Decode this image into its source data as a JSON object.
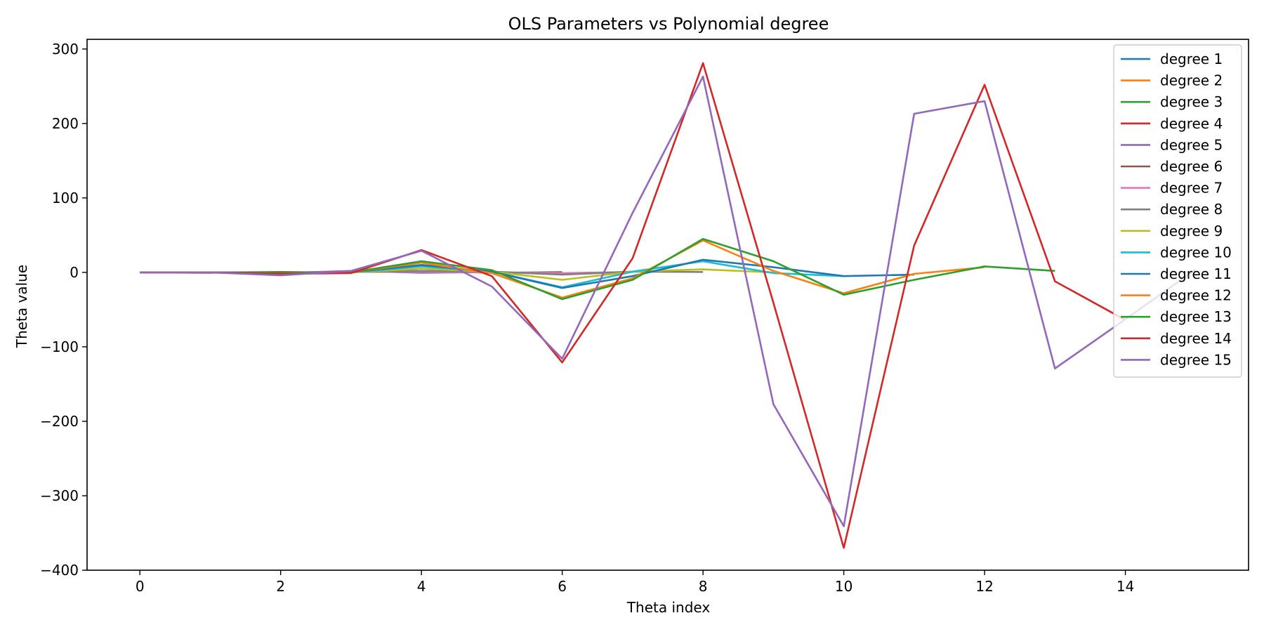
{
  "chart_data": {
    "type": "line",
    "title": "OLS Parameters vs Polynomial degree",
    "xlabel": "Theta index",
    "ylabel": "Theta value",
    "xlim": [
      -0.75,
      15.75
    ],
    "ylim": [
      -400,
      313
    ],
    "xticks": [
      0,
      2,
      4,
      6,
      8,
      10,
      12,
      14
    ],
    "yticks": [
      -400,
      -300,
      -200,
      -100,
      0,
      100,
      200,
      300
    ],
    "ytick_labels": [
      "−400",
      "−300",
      "−200",
      "−100",
      "0",
      "100",
      "200",
      "300"
    ],
    "legend_position": "upper-right",
    "series": [
      {
        "name": "degree 1",
        "color": "#1f77b4",
        "x": [
          0,
          1
        ],
        "y": [
          0.0,
          -0.5
        ]
      },
      {
        "name": "degree 2",
        "color": "#ff7f0e",
        "x": [
          0,
          1,
          2
        ],
        "y": [
          0.0,
          -0.5,
          0.2
        ]
      },
      {
        "name": "degree 3",
        "color": "#2ca02c",
        "x": [
          0,
          1,
          2,
          3
        ],
        "y": [
          0.0,
          -0.3,
          0.5,
          -0.3
        ]
      },
      {
        "name": "degree 4",
        "color": "#d62728",
        "x": [
          0,
          1,
          2,
          3,
          4
        ],
        "y": [
          0.0,
          -0.3,
          -0.5,
          1.0,
          0.5
        ]
      },
      {
        "name": "degree 5",
        "color": "#9467bd",
        "x": [
          0,
          1,
          2,
          3,
          4,
          5
        ],
        "y": [
          0.0,
          0.0,
          -1.0,
          2.0,
          -0.5,
          0.3
        ]
      },
      {
        "name": "degree 6",
        "color": "#8c564b",
        "x": [
          0,
          1,
          2,
          3,
          4,
          5,
          6
        ],
        "y": [
          0.0,
          0.0,
          -1.0,
          1.0,
          2.0,
          -0.5,
          0.3
        ]
      },
      {
        "name": "degree 7",
        "color": "#e377c2",
        "x": [
          0,
          1,
          2,
          3,
          4,
          5,
          6,
          7
        ],
        "y": [
          0.0,
          0.0,
          -1.0,
          0.5,
          1.0,
          0.0,
          -1.0,
          0.5
        ]
      },
      {
        "name": "degree 8",
        "color": "#7f7f7f",
        "x": [
          0,
          1,
          2,
          3,
          4,
          5,
          6,
          7,
          8
        ],
        "y": [
          0.0,
          0.0,
          -1.0,
          0.5,
          2.0,
          1.0,
          -3.0,
          1.0,
          0.5
        ]
      },
      {
        "name": "degree 9",
        "color": "#bcbd22",
        "x": [
          0,
          1,
          2,
          3,
          4,
          5,
          6,
          7,
          8,
          9
        ],
        "y": [
          0.0,
          0.0,
          -1.0,
          0.0,
          5.0,
          1.0,
          -10.0,
          1.0,
          4.0,
          0.0
        ]
      },
      {
        "name": "degree 10",
        "color": "#17becf",
        "x": [
          0,
          1,
          2,
          3,
          4,
          5,
          6,
          7,
          8,
          9,
          10
        ],
        "y": [
          0.0,
          0.0,
          -1.0,
          0.0,
          8.0,
          1.0,
          -20.0,
          1.0,
          15.0,
          -1.0,
          -5.0
        ]
      },
      {
        "name": "degree 11",
        "color": "#1f77b4",
        "x": [
          0,
          1,
          2,
          3,
          4,
          5,
          6,
          7,
          8,
          9,
          10,
          11
        ],
        "y": [
          0.0,
          0.0,
          -1.0,
          0.0,
          10.0,
          1.0,
          -21.0,
          -5.0,
          17.0,
          7.0,
          -5.0,
          -3.0
        ]
      },
      {
        "name": "degree 12",
        "color": "#ff7f0e",
        "x": [
          0,
          1,
          2,
          3,
          4,
          5,
          6,
          7,
          8,
          9,
          10,
          11,
          12
        ],
        "y": [
          0.0,
          0.0,
          -1.0,
          0.0,
          13.0,
          -1.0,
          -34.0,
          -8.0,
          43.0,
          2.0,
          -28.0,
          -2.0,
          7.0
        ]
      },
      {
        "name": "degree 13",
        "color": "#2ca02c",
        "x": [
          0,
          1,
          2,
          3,
          4,
          5,
          6,
          7,
          8,
          9,
          10,
          11,
          12,
          13
        ],
        "y": [
          0.0,
          0.0,
          -1.0,
          0.0,
          15.0,
          3.0,
          -36.0,
          -10.0,
          45.0,
          15.0,
          -30.0,
          -10.0,
          8.0,
          2.0
        ]
      },
      {
        "name": "degree 14",
        "color": "#d62728",
        "x": [
          0,
          1,
          2,
          3,
          4,
          5,
          6,
          7,
          8,
          9,
          10,
          11,
          12,
          13,
          14
        ],
        "y": [
          0.0,
          0.0,
          -2.0,
          -1.0,
          30.0,
          -5.0,
          -121.0,
          19.0,
          281.0,
          -41.0,
          -370.0,
          36.0,
          252.0,
          -12.0,
          -64.0
        ]
      },
      {
        "name": "degree 15",
        "color": "#9467bd",
        "x": [
          0,
          1,
          2,
          3,
          4,
          5,
          6,
          7,
          8,
          9,
          10,
          11,
          12,
          13,
          14,
          15
        ],
        "y": [
          0.0,
          0.0,
          -4.0,
          2.0,
          29.0,
          -19.0,
          -116.0,
          80.0,
          263.0,
          -177.0,
          -341.0,
          213.0,
          230.0,
          -129.0,
          -63.0,
          4.0
        ]
      }
    ]
  }
}
